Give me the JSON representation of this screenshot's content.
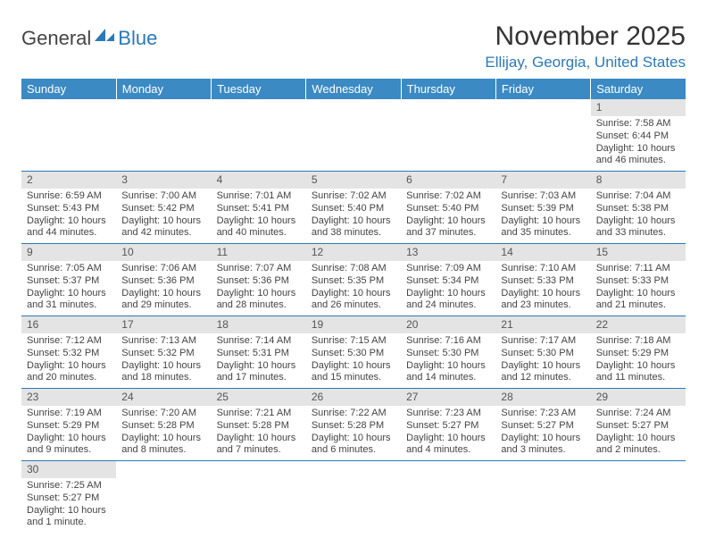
{
  "logo": {
    "general": "General",
    "blue": "Blue"
  },
  "title": "November 2025",
  "location": "Ellijay, Georgia, United States",
  "weekdays": [
    "Sunday",
    "Monday",
    "Tuesday",
    "Wednesday",
    "Thursday",
    "Friday",
    "Saturday"
  ],
  "colors": {
    "header_bg": "#3b8ac4",
    "accent": "#2a7ab9",
    "daynum_bg": "#e4e4e4",
    "text": "#333333",
    "rule": "#2a7ab9"
  },
  "weeks": [
    [
      null,
      null,
      null,
      null,
      null,
      null,
      {
        "n": "1",
        "sr": "Sunrise: 7:58 AM",
        "ss": "Sunset: 6:44 PM",
        "dl": "Daylight: 10 hours and 46 minutes."
      }
    ],
    [
      {
        "n": "2",
        "sr": "Sunrise: 6:59 AM",
        "ss": "Sunset: 5:43 PM",
        "dl": "Daylight: 10 hours and 44 minutes."
      },
      {
        "n": "3",
        "sr": "Sunrise: 7:00 AM",
        "ss": "Sunset: 5:42 PM",
        "dl": "Daylight: 10 hours and 42 minutes."
      },
      {
        "n": "4",
        "sr": "Sunrise: 7:01 AM",
        "ss": "Sunset: 5:41 PM",
        "dl": "Daylight: 10 hours and 40 minutes."
      },
      {
        "n": "5",
        "sr": "Sunrise: 7:02 AM",
        "ss": "Sunset: 5:40 PM",
        "dl": "Daylight: 10 hours and 38 minutes."
      },
      {
        "n": "6",
        "sr": "Sunrise: 7:02 AM",
        "ss": "Sunset: 5:40 PM",
        "dl": "Daylight: 10 hours and 37 minutes."
      },
      {
        "n": "7",
        "sr": "Sunrise: 7:03 AM",
        "ss": "Sunset: 5:39 PM",
        "dl": "Daylight: 10 hours and 35 minutes."
      },
      {
        "n": "8",
        "sr": "Sunrise: 7:04 AM",
        "ss": "Sunset: 5:38 PM",
        "dl": "Daylight: 10 hours and 33 minutes."
      }
    ],
    [
      {
        "n": "9",
        "sr": "Sunrise: 7:05 AM",
        "ss": "Sunset: 5:37 PM",
        "dl": "Daylight: 10 hours and 31 minutes."
      },
      {
        "n": "10",
        "sr": "Sunrise: 7:06 AM",
        "ss": "Sunset: 5:36 PM",
        "dl": "Daylight: 10 hours and 29 minutes."
      },
      {
        "n": "11",
        "sr": "Sunrise: 7:07 AM",
        "ss": "Sunset: 5:36 PM",
        "dl": "Daylight: 10 hours and 28 minutes."
      },
      {
        "n": "12",
        "sr": "Sunrise: 7:08 AM",
        "ss": "Sunset: 5:35 PM",
        "dl": "Daylight: 10 hours and 26 minutes."
      },
      {
        "n": "13",
        "sr": "Sunrise: 7:09 AM",
        "ss": "Sunset: 5:34 PM",
        "dl": "Daylight: 10 hours and 24 minutes."
      },
      {
        "n": "14",
        "sr": "Sunrise: 7:10 AM",
        "ss": "Sunset: 5:33 PM",
        "dl": "Daylight: 10 hours and 23 minutes."
      },
      {
        "n": "15",
        "sr": "Sunrise: 7:11 AM",
        "ss": "Sunset: 5:33 PM",
        "dl": "Daylight: 10 hours and 21 minutes."
      }
    ],
    [
      {
        "n": "16",
        "sr": "Sunrise: 7:12 AM",
        "ss": "Sunset: 5:32 PM",
        "dl": "Daylight: 10 hours and 20 minutes."
      },
      {
        "n": "17",
        "sr": "Sunrise: 7:13 AM",
        "ss": "Sunset: 5:32 PM",
        "dl": "Daylight: 10 hours and 18 minutes."
      },
      {
        "n": "18",
        "sr": "Sunrise: 7:14 AM",
        "ss": "Sunset: 5:31 PM",
        "dl": "Daylight: 10 hours and 17 minutes."
      },
      {
        "n": "19",
        "sr": "Sunrise: 7:15 AM",
        "ss": "Sunset: 5:30 PM",
        "dl": "Daylight: 10 hours and 15 minutes."
      },
      {
        "n": "20",
        "sr": "Sunrise: 7:16 AM",
        "ss": "Sunset: 5:30 PM",
        "dl": "Daylight: 10 hours and 14 minutes."
      },
      {
        "n": "21",
        "sr": "Sunrise: 7:17 AM",
        "ss": "Sunset: 5:30 PM",
        "dl": "Daylight: 10 hours and 12 minutes."
      },
      {
        "n": "22",
        "sr": "Sunrise: 7:18 AM",
        "ss": "Sunset: 5:29 PM",
        "dl": "Daylight: 10 hours and 11 minutes."
      }
    ],
    [
      {
        "n": "23",
        "sr": "Sunrise: 7:19 AM",
        "ss": "Sunset: 5:29 PM",
        "dl": "Daylight: 10 hours and 9 minutes."
      },
      {
        "n": "24",
        "sr": "Sunrise: 7:20 AM",
        "ss": "Sunset: 5:28 PM",
        "dl": "Daylight: 10 hours and 8 minutes."
      },
      {
        "n": "25",
        "sr": "Sunrise: 7:21 AM",
        "ss": "Sunset: 5:28 PM",
        "dl": "Daylight: 10 hours and 7 minutes."
      },
      {
        "n": "26",
        "sr": "Sunrise: 7:22 AM",
        "ss": "Sunset: 5:28 PM",
        "dl": "Daylight: 10 hours and 6 minutes."
      },
      {
        "n": "27",
        "sr": "Sunrise: 7:23 AM",
        "ss": "Sunset: 5:27 PM",
        "dl": "Daylight: 10 hours and 4 minutes."
      },
      {
        "n": "28",
        "sr": "Sunrise: 7:23 AM",
        "ss": "Sunset: 5:27 PM",
        "dl": "Daylight: 10 hours and 3 minutes."
      },
      {
        "n": "29",
        "sr": "Sunrise: 7:24 AM",
        "ss": "Sunset: 5:27 PM",
        "dl": "Daylight: 10 hours and 2 minutes."
      }
    ],
    [
      {
        "n": "30",
        "sr": "Sunrise: 7:25 AM",
        "ss": "Sunset: 5:27 PM",
        "dl": "Daylight: 10 hours and 1 minute."
      },
      null,
      null,
      null,
      null,
      null,
      null
    ]
  ]
}
